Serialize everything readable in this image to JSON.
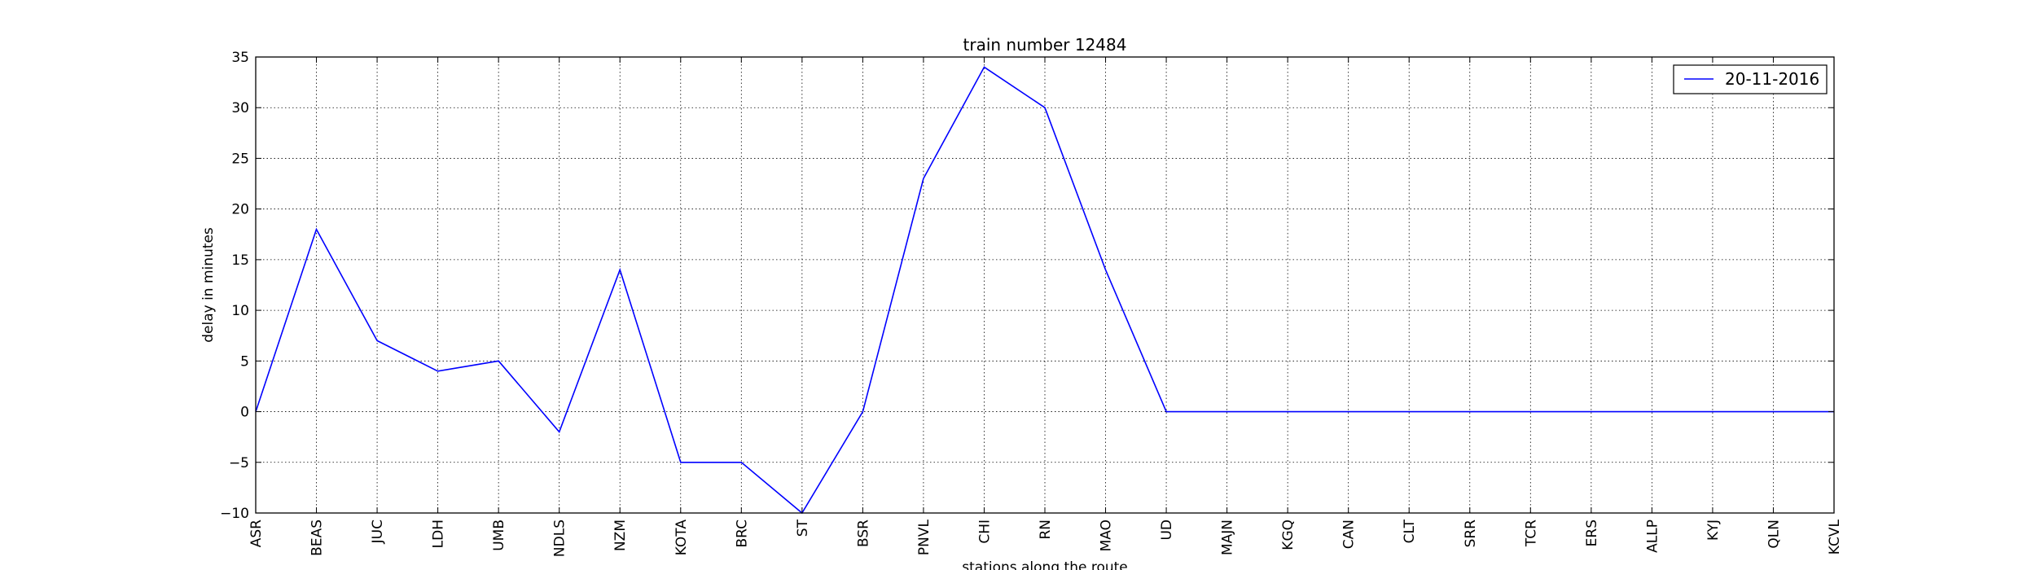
{
  "chart_data": {
    "type": "line",
    "title": "train number 12484",
    "xlabel": "stations along the route",
    "ylabel": "delay in minutes",
    "ylim": [
      -10,
      35
    ],
    "yticks": [
      -10,
      -5,
      0,
      5,
      10,
      15,
      20,
      25,
      30,
      35
    ],
    "grid": true,
    "legend_position": "top-right",
    "categories": [
      "ASR",
      "BEAS",
      "JUC",
      "LDH",
      "UMB",
      "NDLS",
      "NZM",
      "KOTA",
      "BRC",
      "ST",
      "BSR",
      "PNVL",
      "CHI",
      "RN",
      "MAO",
      "UD",
      "MAJN",
      "KGQ",
      "CAN",
      "CLT",
      "SRR",
      "TCR",
      "ERS",
      "ALLP",
      "KYJ",
      "QLN",
      "KCVL"
    ],
    "series": [
      {
        "name": "20-11-2016",
        "color": "#0000ff",
        "values": [
          0,
          18,
          7,
          4,
          5,
          -2,
          14,
          -5,
          -5,
          -10,
          0,
          23,
          34,
          30,
          14,
          0,
          0,
          0,
          0,
          0,
          0,
          0,
          0,
          0,
          0,
          0,
          0
        ]
      }
    ]
  }
}
